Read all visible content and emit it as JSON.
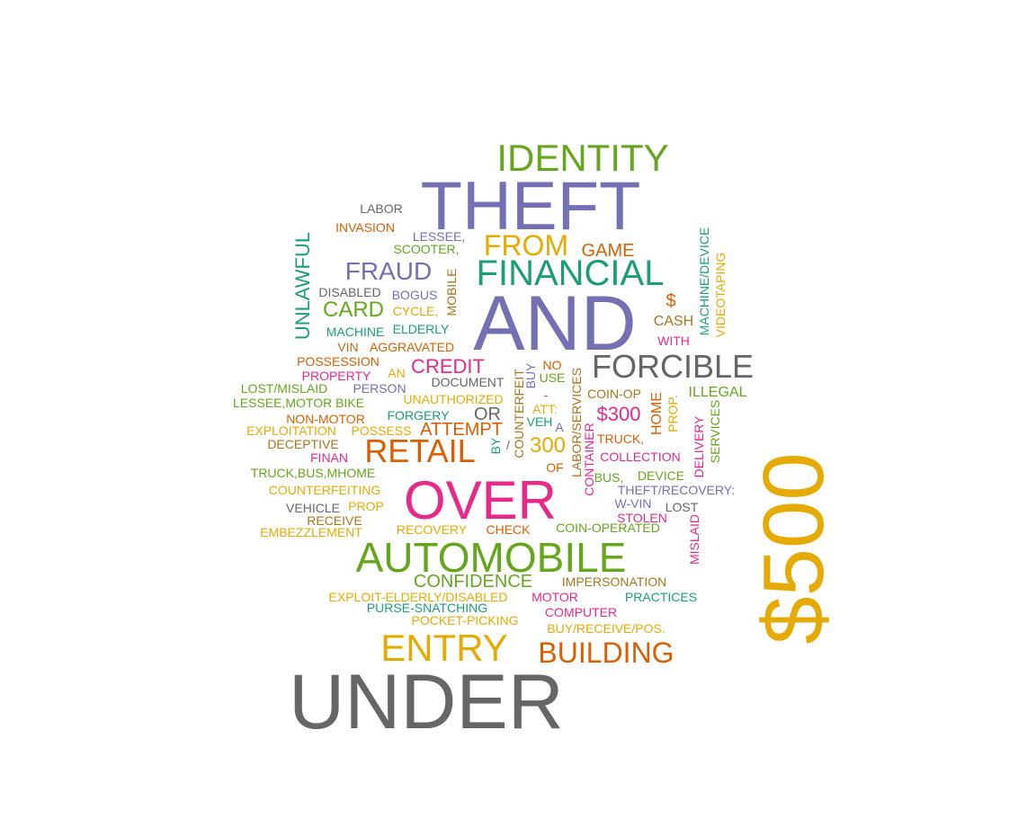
{
  "palette": {
    "teal": "#1b9e77",
    "orange": "#d95f02",
    "purple": "#7570b3",
    "pink": "#e7298a",
    "green": "#66a61e",
    "gold": "#e6ab02",
    "brown": "#a6761d",
    "gray": "#666666"
  },
  "words": [
    {
      "text": "IDENTITY",
      "color": "green"
    },
    {
      "text": "THEFT",
      "color": "purple"
    },
    {
      "text": "LABOR",
      "color": "gray"
    },
    {
      "text": "INVASION",
      "color": "orange"
    },
    {
      "text": "LESSEE,",
      "color": "purple"
    },
    {
      "text": "SCOOTER,",
      "color": "green"
    },
    {
      "text": "FROM",
      "color": "gold"
    },
    {
      "text": "GAME",
      "color": "orange"
    },
    {
      "text": "FRAUD",
      "color": "purple"
    },
    {
      "text": "FINANCIAL",
      "color": "teal"
    },
    {
      "text": "UNLAWFUL",
      "color": "teal"
    },
    {
      "text": "MACHINE/DEVICE",
      "color": "teal"
    },
    {
      "text": "VIDEOTAPING",
      "color": "gold"
    },
    {
      "text": "DISABLED",
      "color": "gray"
    },
    {
      "text": "BOGUS",
      "color": "purple"
    },
    {
      "text": "MOBILE",
      "color": "brown"
    },
    {
      "text": "$",
      "color": "orange"
    },
    {
      "text": "CARD",
      "color": "green"
    },
    {
      "text": "CYCLE,",
      "color": "gold"
    },
    {
      "text": "AND",
      "color": "purple"
    },
    {
      "text": "CASH",
      "color": "brown"
    },
    {
      "text": "MACHINE",
      "color": "teal"
    },
    {
      "text": "ELDERLY",
      "color": "teal"
    },
    {
      "text": "WITH",
      "color": "pink"
    },
    {
      "text": "VIN",
      "color": "brown"
    },
    {
      "text": "AGGRAVATED",
      "color": "orange"
    },
    {
      "text": "POSSESSION",
      "color": "orange"
    },
    {
      "text": "CREDIT",
      "color": "pink"
    },
    {
      "text": "FORCIBLE",
      "color": "gray"
    },
    {
      "text": "PROPERTY",
      "color": "pink"
    },
    {
      "text": "AN",
      "color": "gold"
    },
    {
      "text": "COUNTERFEIT",
      "color": "brown"
    },
    {
      "text": "BUY",
      "color": "purple"
    },
    {
      "text": "NO",
      "color": "orange"
    },
    {
      "text": "USE",
      "color": "green"
    },
    {
      "text": "LABOR/SERVICES",
      "color": "brown"
    },
    {
      "text": "LOST/MISLAID",
      "color": "green"
    },
    {
      "text": "PERSON",
      "color": "purple"
    },
    {
      "text": "DOCUMENT",
      "color": "gray"
    },
    {
      "text": "-",
      "color": "pink"
    },
    {
      "text": "COIN-OP",
      "color": "brown"
    },
    {
      "text": "HOME",
      "color": "orange"
    },
    {
      "text": "PROP.",
      "color": "gold"
    },
    {
      "text": "ILLEGAL",
      "color": "green"
    },
    {
      "text": "LESSEE,MOTOR BIKE",
      "color": "green"
    },
    {
      "text": "UNAUTHORIZED",
      "color": "gold"
    },
    {
      "text": "ATT:",
      "color": "gold"
    },
    {
      "text": "$300",
      "color": "pink"
    },
    {
      "text": "DELIVERY",
      "color": "pink"
    },
    {
      "text": "SERVICES",
      "color": "green"
    },
    {
      "text": "NON-MOTOR",
      "color": "orange"
    },
    {
      "text": "FORGERY",
      "color": "teal"
    },
    {
      "text": "OR",
      "color": "gray"
    },
    {
      "text": "VEH",
      "color": "teal"
    },
    {
      "text": "EXPLOITATION",
      "color": "gold"
    },
    {
      "text": "POSSESS",
      "color": "gold"
    },
    {
      "text": "ATTEMPT",
      "color": "orange"
    },
    {
      "text": "A",
      "color": "purple"
    },
    {
      "text": "DECEPTIVE",
      "color": "brown"
    },
    {
      "text": "RETAIL",
      "color": "orange"
    },
    {
      "text": "BY",
      "color": "teal"
    },
    {
      "text": "/",
      "color": "gray"
    },
    {
      "text": "300",
      "color": "gold"
    },
    {
      "text": "TRUCK,",
      "color": "orange"
    },
    {
      "text": "CONTAINER",
      "color": "pink"
    },
    {
      "text": "$500",
      "color": "gold"
    },
    {
      "text": "FINAN",
      "color": "pink"
    },
    {
      "text": "COLLECTION",
      "color": "pink"
    },
    {
      "text": "OF",
      "color": "orange"
    },
    {
      "text": "TRUCK,BUS,MHOME",
      "color": "green"
    },
    {
      "text": "BUS,",
      "color": "green"
    },
    {
      "text": "DEVICE",
      "color": "green"
    },
    {
      "text": "COUNTERFEITING",
      "color": "gold"
    },
    {
      "text": "OVER",
      "color": "pink"
    },
    {
      "text": "THEFT/RECOVERY:",
      "color": "purple"
    },
    {
      "text": "W-VIN",
      "color": "purple"
    },
    {
      "text": "VEHICLE",
      "color": "gray"
    },
    {
      "text": "PROP",
      "color": "gold"
    },
    {
      "text": "LOST",
      "color": "gray"
    },
    {
      "text": "RECEIVE",
      "color": "brown"
    },
    {
      "text": "STOLEN",
      "color": "pink"
    },
    {
      "text": "MISLAID",
      "color": "pink"
    },
    {
      "text": "EMBEZZLEMENT",
      "color": "gold"
    },
    {
      "text": "RECOVERY",
      "color": "gold"
    },
    {
      "text": "CHECK",
      "color": "orange"
    },
    {
      "text": "COIN-OPERATED",
      "color": "green"
    },
    {
      "text": "AUTOMOBILE",
      "color": "green"
    },
    {
      "text": "CONFIDENCE",
      "color": "green"
    },
    {
      "text": "IMPERSONATION",
      "color": "brown"
    },
    {
      "text": "EXPLOIT-ELDERLY/DISABLED",
      "color": "gold"
    },
    {
      "text": "MOTOR",
      "color": "pink"
    },
    {
      "text": "PRACTICES",
      "color": "teal"
    },
    {
      "text": "PURSE-SNATCHING",
      "color": "teal"
    },
    {
      "text": "COMPUTER",
      "color": "pink"
    },
    {
      "text": "POCKET-PICKING",
      "color": "gold"
    },
    {
      "text": "BUY/RECEIVE/POS.",
      "color": "gold"
    },
    {
      "text": "ENTRY",
      "color": "gold"
    },
    {
      "text": "BUILDING",
      "color": "orange"
    },
    {
      "text": "UNDER",
      "color": "gray"
    }
  ]
}
